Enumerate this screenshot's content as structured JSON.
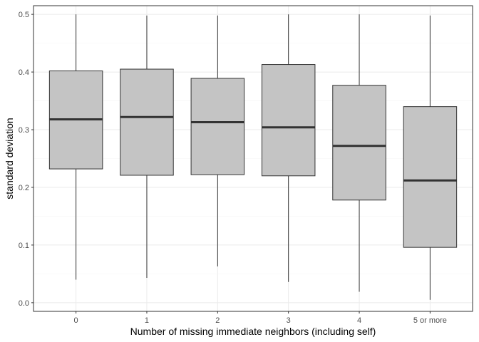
{
  "chart_data": {
    "type": "box",
    "title": "",
    "xlabel": "Number of missing immediate neighbors (including self)",
    "ylabel": "standard deviation",
    "ylim": [
      -0.015,
      0.515
    ],
    "yticks": [
      0.0,
      0.1,
      0.2,
      0.3,
      0.4,
      0.5
    ],
    "ytick_labels": [
      "0.0",
      "0.1",
      "0.2",
      "0.3",
      "0.4",
      "0.5"
    ],
    "grid": true,
    "theme": "bw",
    "categories": [
      "0",
      "1",
      "2",
      "3",
      "4",
      "5 or more"
    ],
    "boxes": [
      {
        "min": 0.04,
        "q1": 0.232,
        "median": 0.318,
        "q3": 0.402,
        "max": 0.5
      },
      {
        "min": 0.043,
        "q1": 0.221,
        "median": 0.322,
        "q3": 0.405,
        "max": 0.498
      },
      {
        "min": 0.063,
        "q1": 0.222,
        "median": 0.313,
        "q3": 0.389,
        "max": 0.498
      },
      {
        "min": 0.036,
        "q1": 0.22,
        "median": 0.304,
        "q3": 0.413,
        "max": 0.5
      },
      {
        "min": 0.019,
        "q1": 0.178,
        "median": 0.272,
        "q3": 0.377,
        "max": 0.5
      },
      {
        "min": 0.005,
        "q1": 0.096,
        "median": 0.212,
        "q3": 0.34,
        "max": 0.498
      }
    ],
    "colors": {
      "box_fill": "#c4c4c4",
      "box_stroke": "#333333",
      "median": "#333333",
      "grid_major": "#ebebeb",
      "grid_minor": "#f5f5f5",
      "panel_border": "#333333",
      "tick": "#333333"
    }
  }
}
